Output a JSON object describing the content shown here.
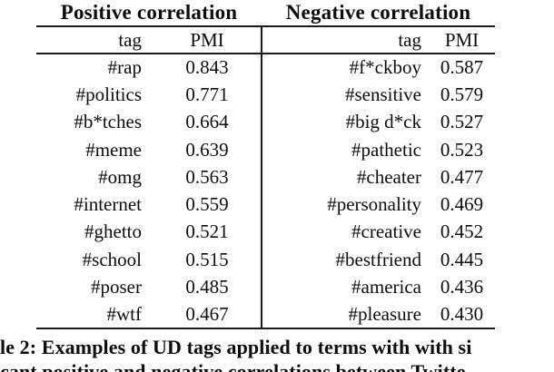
{
  "table": {
    "columns": {
      "tag": "tag",
      "pmi": "PMI"
    },
    "positive": {
      "title": "Positive correlation",
      "rows": [
        {
          "tag": "#rap",
          "pmi": "0.843"
        },
        {
          "tag": "#politics",
          "pmi": "0.771"
        },
        {
          "tag": "#b*tches",
          "pmi": "0.664"
        },
        {
          "tag": "#meme",
          "pmi": "0.639"
        },
        {
          "tag": "#omg",
          "pmi": "0.563"
        },
        {
          "tag": "#internet",
          "pmi": "0.559"
        },
        {
          "tag": "#ghetto",
          "pmi": "0.521"
        },
        {
          "tag": "#school",
          "pmi": "0.515"
        },
        {
          "tag": "#poser",
          "pmi": "0.485"
        },
        {
          "tag": "#wtf",
          "pmi": "0.467"
        }
      ]
    },
    "negative": {
      "title": "Negative correlation",
      "rows": [
        {
          "tag": "#f*ckboy",
          "pmi": "0.587"
        },
        {
          "tag": "#sensitive",
          "pmi": "0.579"
        },
        {
          "tag": "#big d*ck",
          "pmi": "0.527"
        },
        {
          "tag": "#pathetic",
          "pmi": "0.523"
        },
        {
          "tag": "#cheater",
          "pmi": "0.477"
        },
        {
          "tag": "#personality",
          "pmi": "0.469"
        },
        {
          "tag": "#creative",
          "pmi": "0.452"
        },
        {
          "tag": "#bestfriend",
          "pmi": "0.445"
        },
        {
          "tag": "#america",
          "pmi": "0.436"
        },
        {
          "tag": "#pleasure",
          "pmi": "0.430"
        }
      ]
    }
  },
  "caption": {
    "line1": "le 2: Examples of UD tags applied to terms with with si",
    "line2": "cant positive and negative correlations between Twitte"
  }
}
